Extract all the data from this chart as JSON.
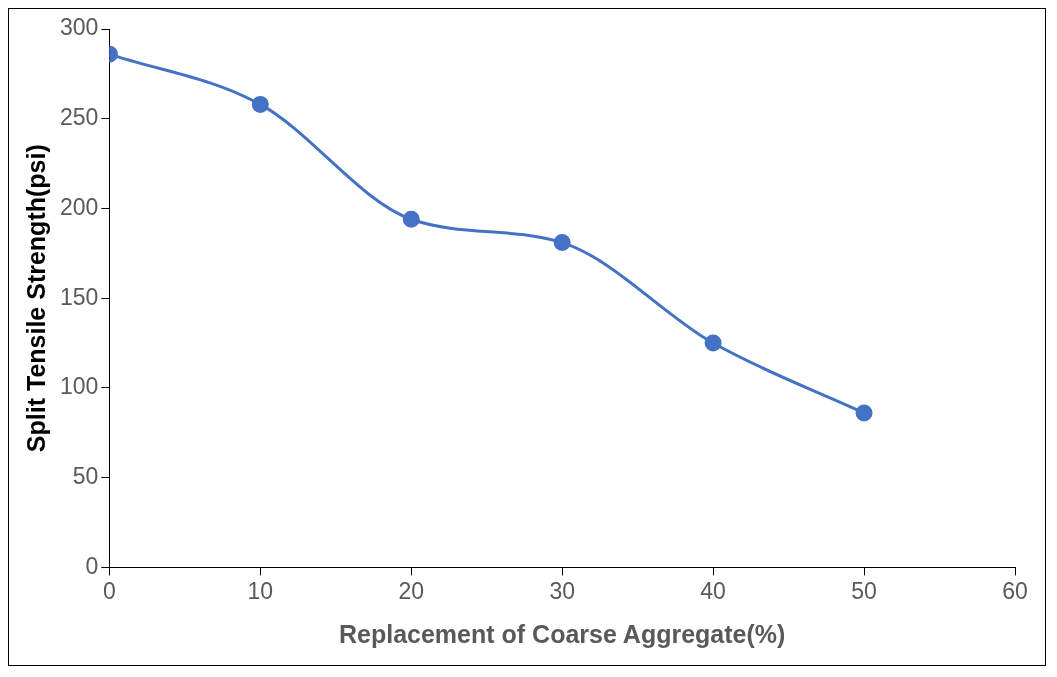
{
  "chart_data": {
    "type": "line",
    "xlabel": "Replacement of Coarse Aggregate(%)",
    "ylabel": "Split Tensile Strength(psi)",
    "x": [
      0,
      10,
      20,
      30,
      40,
      50
    ],
    "series": [
      {
        "color": "#4472c4",
        "values": [
          286,
          258,
          194,
          181,
          125,
          86
        ]
      }
    ],
    "xlim": [
      0,
      60
    ],
    "xticks": [
      0,
      10,
      20,
      30,
      40,
      50,
      60
    ],
    "ylim": [
      0,
      300
    ],
    "yticks": [
      0,
      50,
      100,
      150,
      200,
      250,
      300
    ],
    "grid": false,
    "legend": false,
    "marker": "circle",
    "line_style": "solid"
  }
}
